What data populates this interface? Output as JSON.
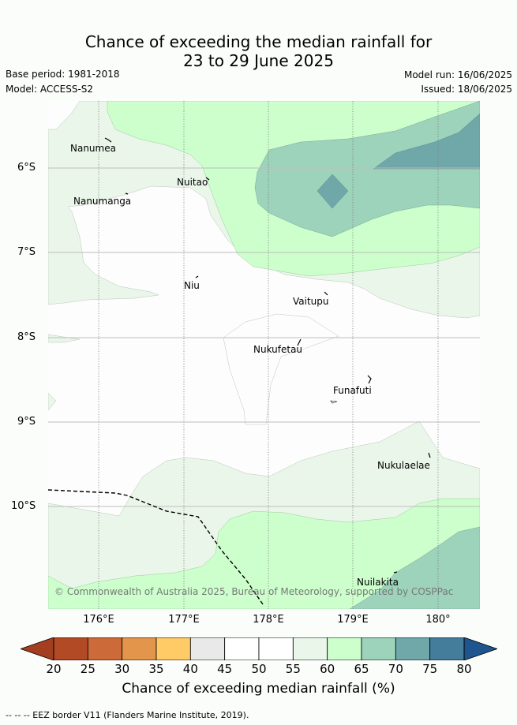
{
  "header": {
    "title_line1": "Chance of exceeding the median rainfall for",
    "title_line2": "23 to 29 June 2025",
    "base_period": "Base period: 1981-2018",
    "model": "Model: ACCESS-S2",
    "model_run": "Model run: 16/06/2025",
    "issued": "Issued: 18/06/2025"
  },
  "map": {
    "lat_labels": [
      "6°S",
      "7°S",
      "8°S",
      "9°S",
      "10°S"
    ],
    "lon_labels": [
      "176°E",
      "177°E",
      "178°E",
      "179°E",
      "180°"
    ],
    "places": [
      "Nanumea",
      "Nuitao",
      "Nanumanga",
      "Niu",
      "Vaitupu",
      "Nukufetau",
      "Funafuti",
      "Nukulaelae",
      "Nuilakita"
    ],
    "copyright": "© Commonwealth of Australia 2025, Bureau of Meteorology, supported by COSPPac"
  },
  "colorbar": {
    "ticks": [
      "20",
      "25",
      "30",
      "35",
      "40",
      "45",
      "50",
      "55",
      "60",
      "65",
      "70",
      "75",
      "80"
    ],
    "colors": [
      "#b34a26",
      "#cd6a3a",
      "#e3954c",
      "#fecb66",
      "#e9e9e9",
      "#ffffff",
      "#ffffff",
      "#eaf6ea",
      "#ccffcc",
      "#9dd2bb",
      "#70a8aa",
      "#437d9b"
    ],
    "under_color": "#a33e20",
    "over_color": "#1e558e",
    "label": "Chance of exceeding median rainfall (%)"
  },
  "footer": {
    "eez_note": "--  --  -- EEZ border V11 (Flanders Marine Institute, 2019)."
  }
}
